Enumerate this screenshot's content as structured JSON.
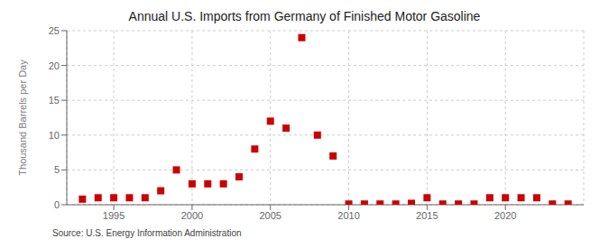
{
  "chart_data": {
    "type": "scatter",
    "title": "Annual U.S. Imports from Germany of Finished Motor Gasoline",
    "ylabel": "Thousand Barrels per Day",
    "annotations": [
      "Source: U.S. Energy Information Administration"
    ],
    "x": [
      1993,
      1994,
      1995,
      1996,
      1997,
      1998,
      1999,
      2000,
      2001,
      2002,
      2003,
      2004,
      2005,
      2006,
      2007,
      2008,
      2009,
      2010,
      2011,
      2012,
      2013,
      2014,
      2015,
      2016,
      2017,
      2018,
      2019,
      2020,
      2021,
      2022,
      2023,
      2024
    ],
    "values": [
      0.8,
      1.0,
      1.0,
      1.0,
      1.0,
      2.0,
      5.0,
      3.0,
      3.0,
      3.0,
      4.0,
      8.0,
      12.0,
      11.0,
      24.0,
      10.0,
      7.0,
      0.1,
      0.1,
      0.1,
      0.1,
      0.2,
      1.0,
      0.1,
      0.1,
      0.1,
      1.0,
      1.0,
      1.0,
      1.0,
      0.1,
      0.1
    ],
    "color": "#cc0000",
    "marker": "square",
    "xlim": [
      1992,
      2025
    ],
    "ylim": [
      0,
      25
    ],
    "xticks": [
      1995,
      2000,
      2005,
      2010,
      2015,
      2020
    ],
    "yticks": [
      0,
      5,
      10,
      15,
      20,
      25
    ],
    "grid": true
  }
}
